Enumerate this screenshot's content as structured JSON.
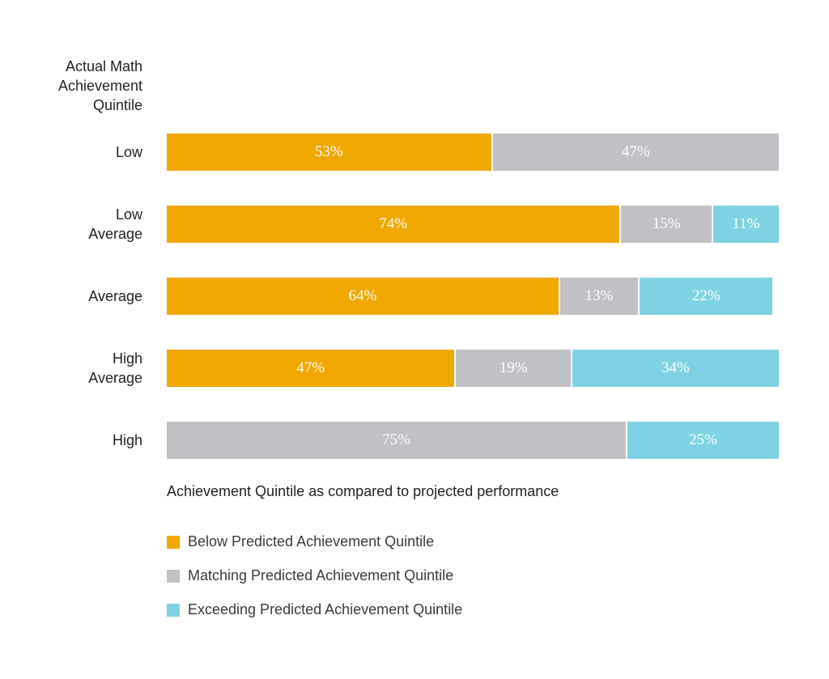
{
  "chart_data": {
    "type": "bar",
    "orientation": "horizontal",
    "stacked": true,
    "ylabel_lines": [
      "Actual Math",
      "Achievement",
      "Quintile"
    ],
    "categories": [
      [
        "Low"
      ],
      [
        "Low",
        "Average"
      ],
      [
        "Average"
      ],
      [
        "High",
        "Average"
      ],
      [
        "High"
      ]
    ],
    "series": [
      {
        "name": "Below Predicted Achievement Quintile",
        "color": "#f0a800",
        "values": [
          53,
          74,
          64,
          47,
          0
        ]
      },
      {
        "name": "Matching Predicted Achievement Quintile",
        "color": "#c1c0c5",
        "values": [
          47,
          15,
          13,
          19,
          75
        ]
      },
      {
        "name": "Exceeding Predicted Achievement Quintile",
        "color": "#7fd2e3",
        "values": [
          0,
          11,
          22,
          34,
          25
        ]
      }
    ],
    "value_suffix": "%",
    "xlim": [
      0,
      100
    ],
    "legend_title": "Achievement Quintile as compared to projected performance",
    "legend_position": "bottom"
  }
}
